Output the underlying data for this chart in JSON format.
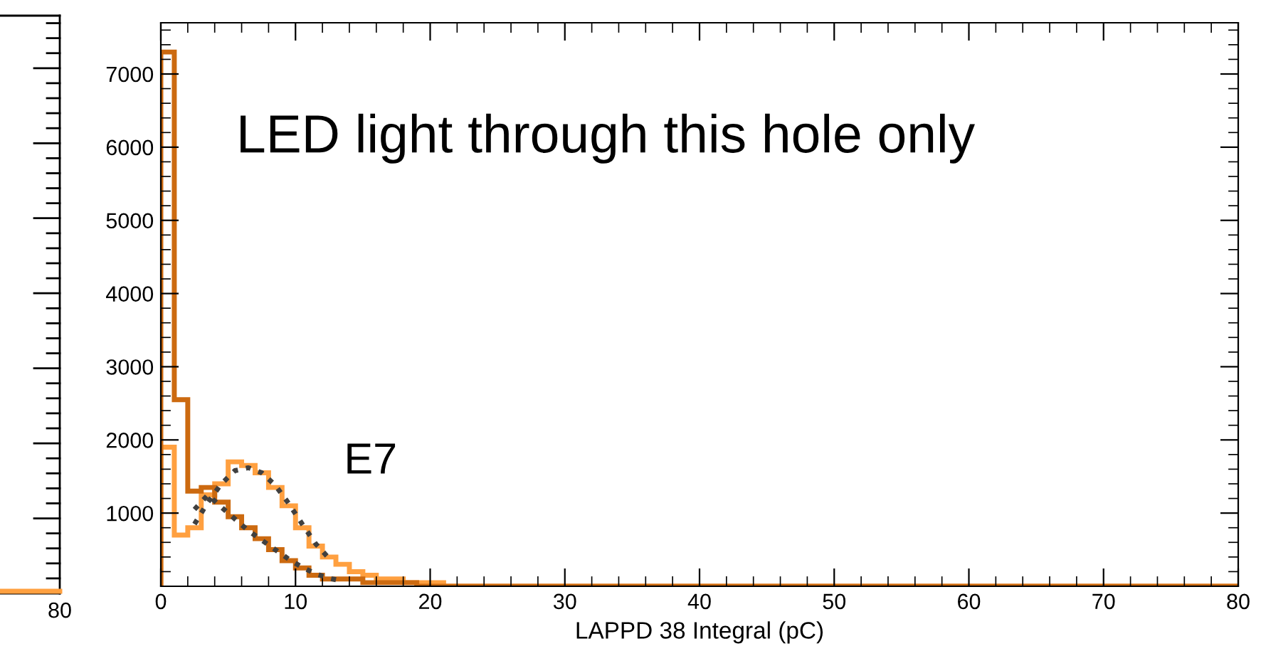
{
  "chart_data": [
    {
      "type": "other",
      "annotations": [
        "80"
      ]
    },
    {
      "type": "histogram",
      "xlabel": "LAPPD 38 Integral (pC)",
      "annotations": [
        "LED light through this hole only",
        "E7"
      ],
      "bins": [
        0,
        1,
        2,
        3,
        4,
        5,
        6,
        7,
        8,
        9,
        10,
        11,
        12,
        13,
        14,
        15,
        16,
        17,
        18,
        19,
        20,
        21,
        22,
        23,
        24,
        25,
        26,
        27,
        28,
        29,
        30,
        31,
        32,
        33,
        34,
        35,
        36,
        37,
        38,
        39,
        40,
        41,
        42,
        43,
        44,
        45,
        46,
        47,
        48,
        49,
        50,
        51,
        52,
        53,
        54,
        55,
        56,
        57,
        58,
        59,
        60,
        61,
        62,
        63,
        64,
        65,
        66,
        67,
        68,
        69,
        70,
        71,
        72,
        73,
        74,
        75,
        76,
        77,
        78,
        79,
        80
      ],
      "series": [
        {
          "color": "#ffa040",
          "values": [
            1900,
            700,
            800,
            1250,
            1400,
            1700,
            1650,
            1550,
            1350,
            1100,
            800,
            550,
            400,
            300,
            200,
            150,
            100,
            100,
            50,
            50,
            50,
            0,
            0,
            0,
            0,
            0,
            0,
            0,
            0,
            0,
            0,
            0,
            0,
            0,
            0,
            0,
            0,
            0,
            0,
            0,
            0,
            0,
            0,
            0,
            0,
            0,
            0,
            0,
            0,
            0,
            0,
            0,
            0,
            0,
            0,
            0,
            0,
            0,
            0,
            0,
            0,
            0,
            0,
            0,
            0,
            0,
            0,
            0,
            0,
            0,
            0,
            0,
            0,
            0,
            0,
            0,
            0,
            0,
            0,
            0
          ]
        },
        {
          "color": "#cc6a10",
          "values": [
            7300,
            2550,
            1300,
            1350,
            1150,
            950,
            800,
            650,
            500,
            350,
            250,
            150,
            100,
            100,
            100,
            50,
            50,
            50,
            50,
            0,
            0,
            0,
            0,
            0,
            0,
            0,
            0,
            0,
            0,
            0,
            0,
            0,
            0,
            0,
            0,
            0,
            0,
            0,
            0,
            0,
            0,
            0,
            0,
            0,
            0,
            0,
            0,
            0,
            0,
            0,
            0,
            0,
            0,
            0,
            0,
            0,
            0,
            0,
            0,
            0,
            0,
            0,
            0,
            0,
            0,
            0,
            0,
            0,
            0,
            0,
            0,
            0,
            0,
            0,
            0,
            0,
            0,
            0,
            0,
            0
          ]
        },
        {
          "type": "line",
          "color": "#404040",
          "line_style": "dotted",
          "x": [
            2.5,
            3.5,
            4.5,
            5.5,
            6.5,
            7.5,
            8.5,
            9.5,
            10.5,
            11.5,
            12.5
          ],
          "values": [
            850,
            1150,
            1400,
            1580,
            1620,
            1550,
            1380,
            1130,
            850,
            580,
            380
          ]
        },
        {
          "type": "line",
          "color": "#404040",
          "line_style": "dotted",
          "x": [
            2.5,
            3.5,
            4.5,
            5.5,
            6.5,
            7.5,
            8.5,
            9.5,
            10.5,
            11.5,
            12.5,
            13.5
          ],
          "values": [
            1050,
            1250,
            1080,
            920,
            760,
            630,
            500,
            370,
            260,
            170,
            110,
            70
          ]
        }
      ],
      "xlim": [
        0,
        80
      ],
      "xticks": [
        0,
        10,
        20,
        30,
        40,
        50,
        60,
        70,
        80
      ],
      "ylim": [
        0,
        7700
      ],
      "yticks": [
        1000,
        2000,
        3000,
        4000,
        5000,
        6000,
        7000
      ],
      "grid": false,
      "legend": false
    }
  ]
}
